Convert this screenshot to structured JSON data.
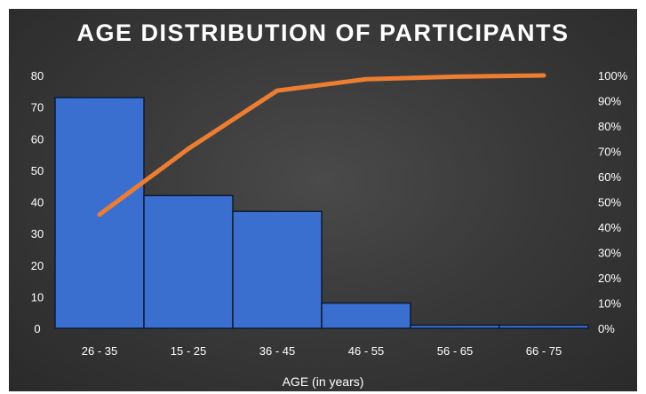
{
  "chart_data": {
    "type": "bar",
    "title": "AGE DISTRIBUTION OF PARTICIPANTS",
    "xlabel": "AGE (in years)",
    "ylabel": "",
    "categories": [
      "26 - 35",
      "15 - 25",
      "36 - 45",
      "46 - 55",
      "56 - 65",
      "66 - 75"
    ],
    "series": [
      {
        "type": "bar",
        "axis": "left",
        "values": [
          73,
          42,
          37,
          8,
          1,
          1
        ],
        "color": "#3a6fd0"
      },
      {
        "type": "line",
        "axis": "right",
        "values": [
          45,
          71,
          94,
          98.5,
          99.5,
          100
        ],
        "color": "#ed7d31"
      }
    ],
    "ylim": [
      0,
      80
    ],
    "yticks": [
      0,
      10,
      20,
      30,
      40,
      50,
      60,
      70,
      80
    ],
    "y2lim": [
      0,
      100
    ],
    "y2ticks": [
      "0%",
      "10%",
      "20%",
      "30%",
      "40%",
      "50%",
      "60%",
      "70%",
      "80%",
      "90%",
      "100%"
    ],
    "grid": false,
    "legend": "none"
  }
}
